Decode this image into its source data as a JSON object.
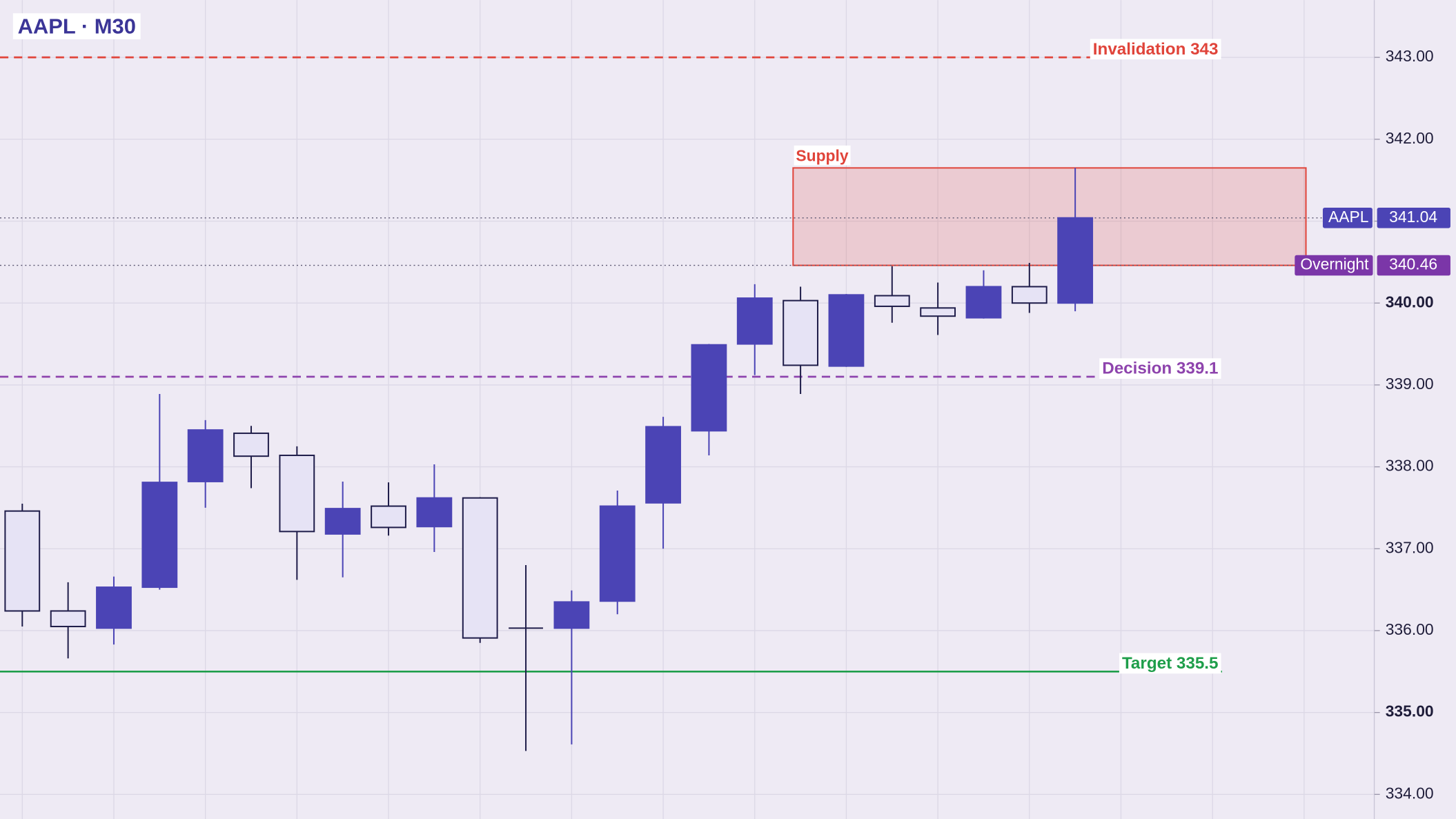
{
  "chart_data": {
    "type": "candlestick",
    "title": "AAPL · M30",
    "up_color": "#4b44b5",
    "down_color": "#e6e3f5",
    "outline_color": "#1f1d4a",
    "series": [
      {
        "name": "AAPL",
        "open": [
          337.46,
          336.24,
          336.03,
          336.53,
          337.82,
          338.41,
          338.14,
          337.18,
          337.52,
          337.27,
          337.62,
          336.03,
          336.03,
          336.36,
          337.56,
          338.44,
          339.5,
          340.03,
          339.23,
          340.09,
          339.94,
          339.82,
          340.2,
          340.0
        ],
        "high": [
          337.55,
          336.59,
          336.66,
          338.89,
          338.57,
          338.5,
          338.25,
          337.82,
          337.81,
          338.03,
          337.63,
          336.8,
          336.49,
          337.71,
          338.61,
          339.5,
          340.23,
          340.2,
          340.11,
          340.45,
          340.25,
          340.4,
          340.49,
          341.65
        ],
        "low": [
          336.05,
          335.66,
          335.83,
          336.5,
          337.5,
          337.74,
          336.62,
          336.65,
          337.16,
          336.96,
          335.85,
          334.53,
          334.61,
          336.2,
          337.0,
          338.14,
          339.12,
          338.89,
          339.22,
          339.76,
          339.61,
          339.81,
          339.88,
          339.9
        ],
        "close": [
          336.24,
          336.05,
          336.53,
          337.81,
          338.45,
          338.13,
          337.21,
          337.49,
          337.26,
          337.62,
          335.91,
          336.03,
          336.35,
          337.52,
          338.49,
          339.49,
          340.06,
          339.24,
          340.1,
          339.96,
          339.84,
          340.2,
          340.0,
          341.04
        ]
      }
    ],
    "ylim": [
      333.7,
      343.7
    ],
    "yticks": [
      {
        "value": 334,
        "label": "334.00"
      },
      {
        "value": 335,
        "label": "335.00"
      },
      {
        "value": 336,
        "label": "336.00"
      },
      {
        "value": 337,
        "label": "337.00"
      },
      {
        "value": 338,
        "label": "338.00"
      },
      {
        "value": 339,
        "label": "339.00"
      },
      {
        "value": 340,
        "label": "340.00"
      },
      {
        "value": 341,
        "label": "341.00"
      },
      {
        "value": 342,
        "label": "342.00"
      },
      {
        "value": 343,
        "label": "343.00"
      }
    ],
    "grid": true,
    "levels": [
      {
        "label": "Invalidation 343",
        "value": 343,
        "color": "#e0443a",
        "style": "dashed"
      },
      {
        "label": "Decision 339.1",
        "value": 339.1,
        "color": "#8e44ad",
        "style": "dashed"
      },
      {
        "label": "Target 335.5",
        "value": 335.5,
        "color": "#1e9e4a",
        "style": "solid"
      }
    ],
    "zone": {
      "label": "Supply",
      "low": 340.46,
      "high": 341.65,
      "color": "#e0443a"
    },
    "price_tags": [
      {
        "label": "AAPL",
        "value": 341.04,
        "color": "#4b44b5"
      },
      {
        "label": "Overnight",
        "value": 340.46,
        "color": "#7b36a8"
      }
    ]
  }
}
